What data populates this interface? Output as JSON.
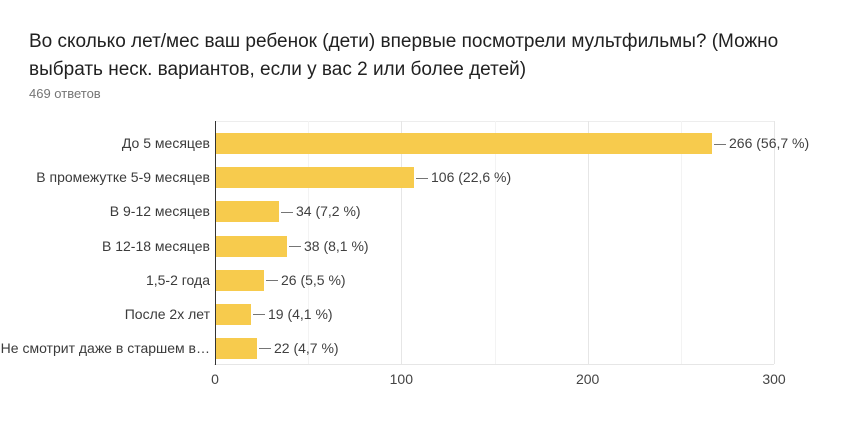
{
  "header": {
    "title": "Во сколько лет/мес ваш ребенок (дети) впервые посмотрели мультфильмы? (Можно выбрать неск. вариантов, если у вас 2 или более детей)",
    "responses": "469 ответов"
  },
  "chart_data": {
    "type": "bar",
    "orientation": "horizontal",
    "title": "Во сколько лет/мес ваш ребенок (дети) впервые посмотрели мультфильмы? (Можно выбрать неск. вариантов, если у вас 2 или более детей)",
    "subtitle": "469 ответов",
    "categories": [
      "До 5 месяцев",
      "В промежутке 5-9 месяцев",
      "В 9-12 месяцев",
      "В 12-18 месяцев",
      "1,5-2 года",
      "После 2х лет",
      "Не смотрит даже в старшем в…"
    ],
    "values": [
      266,
      106,
      34,
      38,
      26,
      19,
      22
    ],
    "value_labels": [
      "266 (56,7 %)",
      "106 (22,6 %)",
      "34 (7,2 %)",
      "38 (8,1 %)",
      "26 (5,5 %)",
      "19 (4,1 %)",
      "22 (4,7 %)"
    ],
    "x_ticks": [
      "0",
      "100",
      "200",
      "300"
    ],
    "x_tick_values": [
      0,
      100,
      200,
      300
    ],
    "x_minor_values": [
      50,
      150,
      250
    ],
    "xlim": [
      0,
      300
    ],
    "xlabel": "",
    "ylabel": "",
    "legend": "none",
    "grid": true,
    "colors": {
      "bar": "#f7cb4d",
      "axis_baseline": "#333333",
      "gridline": "#e6e6e6",
      "minor_gridline": "#f3f3f3",
      "chart_border": "#ededed"
    }
  }
}
